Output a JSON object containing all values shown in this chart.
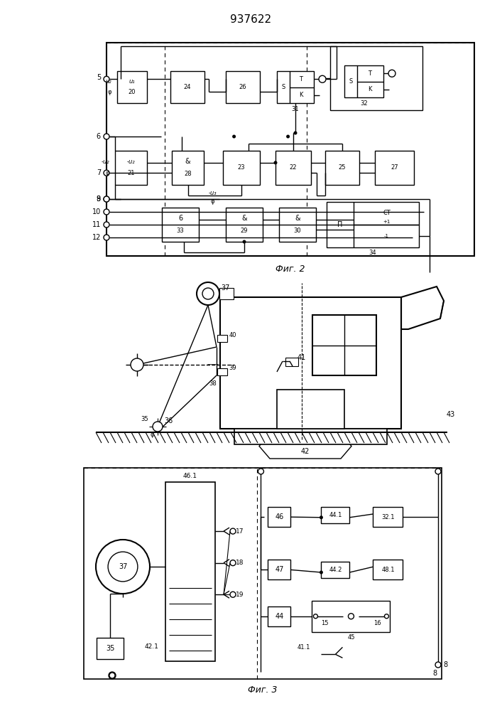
{
  "title": "937622",
  "fig2_label": "Фиг. 2",
  "fig3_label": "Фиг. 3",
  "bg_color": "#ffffff"
}
